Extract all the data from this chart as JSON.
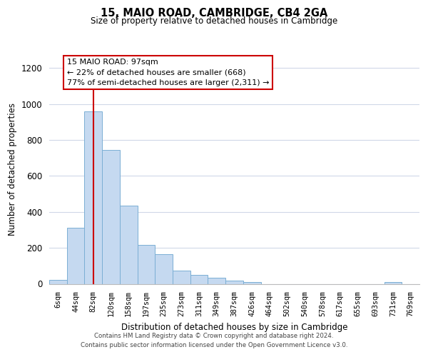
{
  "title": "15, MAIO ROAD, CAMBRIDGE, CB4 2GA",
  "subtitle": "Size of property relative to detached houses in Cambridge",
  "xlabel": "Distribution of detached houses by size in Cambridge",
  "ylabel": "Number of detached properties",
  "bin_labels": [
    "6sqm",
    "44sqm",
    "82sqm",
    "120sqm",
    "158sqm",
    "197sqm",
    "235sqm",
    "273sqm",
    "311sqm",
    "349sqm",
    "387sqm",
    "426sqm",
    "464sqm",
    "502sqm",
    "540sqm",
    "578sqm",
    "617sqm",
    "655sqm",
    "693sqm",
    "731sqm",
    "769sqm"
  ],
  "bar_values": [
    20,
    310,
    960,
    745,
    435,
    215,
    165,
    75,
    48,
    33,
    18,
    8,
    0,
    0,
    0,
    0,
    0,
    0,
    0,
    10,
    0
  ],
  "bar_color": "#c5d9f0",
  "bar_edge_color": "#7bafd4",
  "vline_x": 2,
  "vline_color": "#cc0000",
  "annotation_line1": "15 MAIO ROAD: 97sqm",
  "annotation_line2": "← 22% of detached houses are smaller (668)",
  "annotation_line3": "77% of semi-detached houses are larger (2,311) →",
  "ylim": [
    0,
    1270
  ],
  "yticks": [
    0,
    200,
    400,
    600,
    800,
    1000,
    1200
  ],
  "footer_line1": "Contains HM Land Registry data © Crown copyright and database right 2024.",
  "footer_line2": "Contains public sector information licensed under the Open Government Licence v3.0.",
  "background_color": "#ffffff",
  "grid_color": "#d0d8e8",
  "ann_box_color": "#cc0000",
  "ann_box_fc": "#ffffff"
}
